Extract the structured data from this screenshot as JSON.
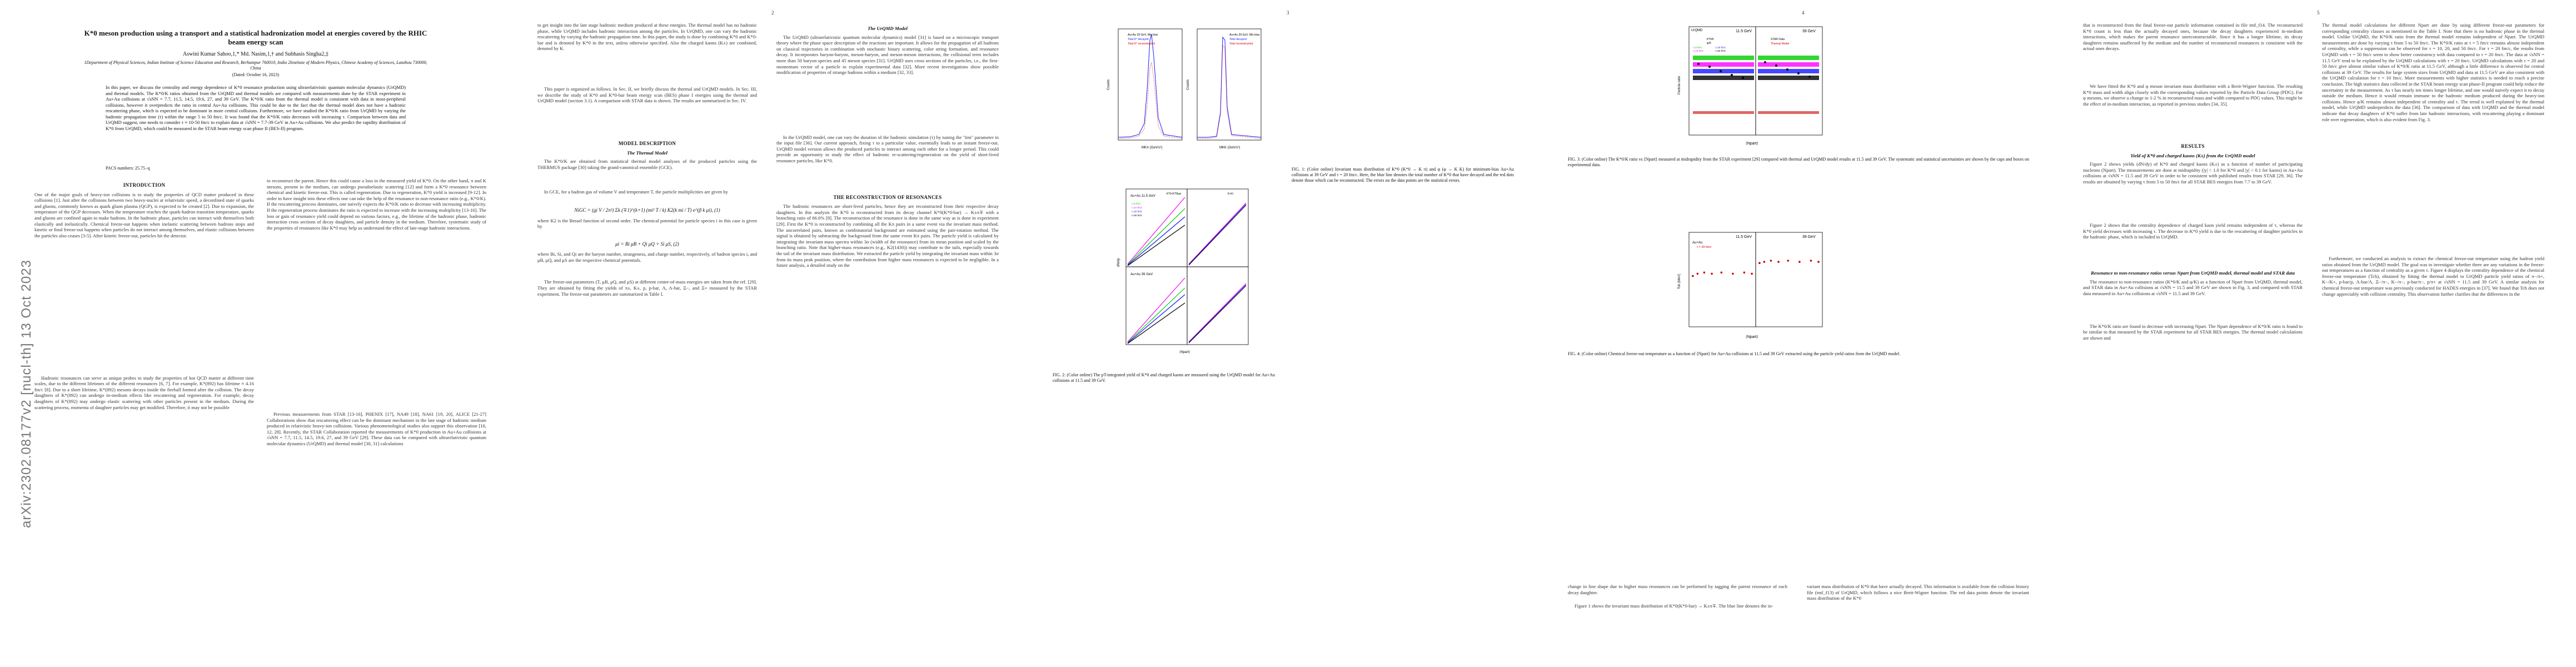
{
  "arxiv_stamp": "arXiv:2302.08177v2  [nucl-th]  13 Oct 2023",
  "page_numbers": [
    "2",
    "3",
    "4",
    "5"
  ],
  "title": "K*0 meson production using a transport and a statistical hadronization model at energies covered by the RHIC beam energy scan",
  "authors": "Aswini Kumar Sahoo,1,* Md. Nasim,1,† and Subhasis Singha2,‡",
  "affiliations": "1Department of Physical Sciences, Indian Institute of Science Education and Research, Berhampur 760010, India  2Institute of Modern Physics, Chinese Academy of Sciences, Lanzhou 730000, China",
  "dated": "(Dated: October 16, 2023)",
  "abstract": "In this paper, we discuss the centrality and energy dependence of K*0 resonance production using ultrarelativistic quantum molecular dynamics (UrQMD) and thermal models. The K*0/K ratios obtained from the UrQMD and thermal models are compared with measurements done by the STAR experiment in Au+Au collisions at √sNN = 7.7, 11.5, 14.5, 19.6, 27, and 39 GeV. The K*0/K ratio from the thermal model is consistent with data in most-peripheral collisions, however it overpredicts the ratio in central Au+Au collisions. This could be due to the fact that the thermal model does not have a hadronic rescattering phase, which is expected to be dominant in more central collisions. Furthermore, we have studied the K*0/K ratio from UrQMD by varying the hadronic propagation time (τ) within the range 5 to 50 fm/c. It was found that the K*0/K ratio decreases with increasing τ. Comparison between data and UrQMD suggest, one needs to consider τ ≈ 10-50 fm/c to explain data at √sNN = 7.7-39 GeV in Au+Au collisions. We also predict the rapidity distribution of K*0 from UrQMD, which could be measured in the STAR beam energy scan phase II (BES-II) program.",
  "pacs": "PACS numbers: 25.75.-q",
  "sections": {
    "introduction": "INTRODUCTION",
    "model_description": "MODEL DESCRIPTION",
    "thermal_model": "The Thermal Model",
    "urqmd_model": "The UrQMD Model",
    "reconstruction": "THE RECONSTRUCTION OF RESONANCES",
    "results": "RESULTS",
    "yield_subsection": "Yield of K*0 and charged kaons (K±) from the UrQMD model",
    "resonance_subsection": "Resonance to non-resonance ratios versus Npart from UrQMD model, thermal model and STAR data"
  },
  "text": {
    "intro_1": "One of the major goals of heavy-ion collisions is to study the properties of QCD matter produced in these collisions [1]. Just after the collisions between two heavy-nuclei at relativistic speed, a deconfined state of quarks and gluons, commonly known as quark gluon plasma (QGP), is expected to be created [2]. Due to expansion, the temperature of the QGP decreases. When the temperature reaches the quark-hadron transition temperature, quarks and gluons are confined again to make hadrons. In the hadronic phase, particles can interact with themselves both elastically and inelastically. Chemical freeze-out happens when inelastic scattering between hadrons stops and kinetic or final freeze-out happens when particles do not interact among themselves, and elastic collisions between the particles also ceases [3-5]. After kinetic freeze-out, particles hit the detector.",
    "intro_2": "Hadronic resonances can serve as unique probes to study the properties of hot QCD matter at different time scales, due to the different lifetimes of the different resonances [6, 7]. For example, K*(892) has lifetime ≈ 4.16 fm/c [8]. Due to a short lifetime, K*(892) mesons decays inside the fireball formed after the collision. The decay daughters of K*(892) can undergo in-medium effects like rescattering and regeneration. For example, decay daughters of K*(892) may undergo elastic scattering with other particles present in the medium. During the scattering process, momenta of daughter particles may get modified. Therefore, it may not be possible",
    "col2_a": "to reconstruct the parent. Hence this could cause a loss in the measured yield of K*0. On the other hand, π and K mesons, present in the medium, can undergo pseudoelastic scattering [12] and form a K*0 resonance between chemical and kinetic freeze-out. This is called regeneration. Due to regeneration, K*0 yield is increased [9-12]. In order to have insight into these effects one can take the help of the resonance to non-resonance ratio (e.g., K*0/K). If the rescattering process dominates, one naively expects the K*0/K ratio to decrease with increasing multiplicity. If the regeneration process dominates the ratio is expected to increase with the increasing multiplicity [13-16]. The loss or gain of resonance yield could depend on various factors, e.g., the lifetime of the hadronic phase, hadronic interaction cross sections of decay daughters, and particle density in the medium. Therefore, systematic study of the properties of resonances like K*0 may help us understand the effect of late-stage hadronic interactions.",
    "col2_b": "Previous measurements from STAR [13-16], PHENIX [17], NA49 [18], NA61 [19, 20], ALICE [21-27] Collaborations show that rescattering effect can be the dominant mechanism in the late stage of hadronic medium produced in relativistic heavy-ion collisions. Various phenomenological studies also support this observation [10, 12, 28]. Recently, the STAR Collaboration reported the measurements of K*0 production in Au+Au collisions at √sNN = 7.7, 11.5, 14.5, 19.6, 27, and 39 GeV [29]. These data can be compared with ultrarelativistic quantum molecular dynamics (UrQMD) and thermal model [30, 31] calculations",
    "col3_a": "to get insight into the late stage hadronic medium produced at these energies. The thermal model has no hadronic phase, while UrQMD includes hadronic interaction among the particles. In UrQMD, one can vary the hadronic rescattering by varying the hadronic propagation time. In this paper, the study is done by combining K*0 and K*0-bar and is denoted by K*0 in the text, unless otherwise specified. Also the charged kaons (K±) are combined, denoted by K.",
    "col3_b": "This paper is organized as follows. In Sec. II, we briefly discuss the thermal and UrQMD models. In Sec. III, we describe the study of K*0 and K*0-bar beam energy scan (BES) phase I energies using the thermal and UrQMD model (section 3.1). A comparison with STAR data is shown. The results are summarized in Sec. IV.",
    "thermal_1": "The K*0/K are obtained from statistical thermal model analyses of the produced particles using the THERMUS package [30] taking the grand-canonical ensemble (GCE).",
    "thermal_2": "In GCE, for a hadron gas of volume V and temperature T, the particle multiplicities are given by",
    "equation_1": "NiGC = (gi V / 2π²) Σk (∓1)^(k+1) (mi² T / k) K2(k mi / T) e^(β k μi),   (1)",
    "thermal_3": "where K2 is the Bessel function of second order. The chemical potential for particle species i in this case is given by",
    "equation_2": "μi = Bi μB + Qi μQ + Si μS,   (2)",
    "thermal_4": "where Bi, Si, and Qi are the baryon number, strangeness, and charge number, respectively, of hadron species i, and μB, μQ, and μS are the respective chemical potentials.",
    "thermal_5": "The freeze-out parameters (T, μB, μQ, and μS) at different center-of-mass energies are taken from the ref. [29]. They are obtained by fitting the yields of π±, K±, p, p-bar, Λ, Λ-bar, Ξ−, and Ξ+ measured by the STAR experiment. The freeze-out parameters are summarized in Table I.",
    "urqmd_1": "The UrQMD (ultrarelativistic quantum molecular dynamics) model [31] is based on a microscopic transport theory where the phase space description of the reactions are important. It allows for the propagation of all hadrons on classical trajectories in combination with stochastic binary scattering, color string formation, and resonance decay. It incorporates baryon-baryon, meson-baryon, and meson-meson interactions, the collisional term includes more than 50 baryon species and 45 meson species [31]. UrQMD uses cross sections of the particles, i.e., the first-momentum vector of a particle to explain experimental data [32]. More recent investigations show possible modification of properties of strange hadrons within a medium [32, 33].",
    "urqmd_2": "In the UrQMD model, one can vary the duration of the hadronic simulation (τ) by tuning the \"tim\" parameter in the input file [36]. Our current approach, fixing τ to a particular value, essentially leads to an instant freeze-out. UrQMD model version allows the produced particles to interact among each other for a longer period. This could provide an opportunity to study the effect of hadronic re-scattering/regeneration on the yield of short-lived resonance particles, like K*0.",
    "recon_1": "The hadronic resonances are short-lived particles, hence they are reconstructed from their respective decay daughters. In this analysis the K*0 is reconstructed from its decay channel K*0(K*0-bar) → K±π∓ with a branching ratio of 66.6% [8]. The reconstruction of the resonance is done in the same way as is done in experiment [29]. First the K*0 is reconstructed by combining all the Kπ pairs in a same event via the invariant mass method. The uncorrelated pairs, known as combinatorial background are estimated using the pair-rotation method. The signal is obtained by subtracting the background from the same event Kπ pairs. The particle yield is calculated by integrating the invariant mass spectra within 3σ (width of the resonance) from its mean position and scaled by the branching ratio. Note that higher-mass resonances (e.g., K2(1430)) may contribute to the tails, especially towards the tail of the invariant mass distribution. We extracted the particle yield by integrating the invariant mass within 3σ from its mass peak position, where the contribution from higher mass resonances is expected to be negligible. In a future analysis, a detailed study on the",
    "col4_bottom_a": "change in line shape due to higher mass resonances can be performed by tagging the parent resonance of each decay daughter.",
    "col4_bottom_b": "Figure 1 shows the invariant mass distribution of K*0(K*0-bar) → K±π∓. The blue line denotes the in-",
    "col4_bottom_c": "variant mass distribution of K*0 that have actually decayed. This information is available from the collision history file (tmf_f13) of UrQMD, which follows a nice Breit-Wigner function. The red data points denote the invariant mass distribution of the K*0",
    "col5_top": "that is reconstructed from the final freeze-out particle information contained in file tmf_f14. The reconstructed K*0 count is less than the actually decayed ones, because the decay daughters experienced in-medium interactions, which makes the parent resonance unreconstructable. Since it has a longer lifetime, its decay daughters remains unaffected by the medium and the number of reconstructed resonances is consistent with the actual ones decays.",
    "col5_top_b": "We have fitted the K*0 and φ meson invariant mass distribution with a Breit-Wigner function. The resulting K*0 mass and width align closely with the corresponding values reported by the Particle Data Group (PDG). For φ mesons, we observe a change to 1-2 % in reconstructed mass and width compared to PDG values. This might be the effect of in-medium interaction, as reported in previous studies [34, 35].",
    "yield_1": "Figure 2 shows yields (dN/dy) of K*0 and charged kaons (K±) as a function of number of participating nucleons (Npart). The measurements are done at midrapidity (|y| < 1.0 for K*0 and |y| < 0.1 for kaons) in Au+Au collisions at √sNN = 11.5 and 39 GeV in order to be consistent with published results from STAR [29, 36]. The results are obtained by varying τ from 5 to 50 fm/c for all STAR BES energies from 7.7 to 39 GeV.",
    "yield_2": "Figure 2 shows that the centrality dependence of charged kaon yield remains independent of τ, whereas the K*0 yield decreases with increasing τ. The decrease in K*0 yield is due to the rescattering of daughter particles in the hadronic phase, which is included in UrQMD.",
    "res_1": "The resonance to non-resonance ratios (K*0/K and φ/K) as a function of Npart from UrQMD, thermal model, and STAR data in Au+Au collisions at √sNN = 11.5 and 39 GeV are shown in Fig. 3, and compared with STAR data measured in Au+Au collisions at √sNN = 11.5 and 39 GeV.",
    "res_2": "The K*0/K ratio are found to decrease with increasing Npart. The Npart dependence of K*0/K ratio is found to be similar to that measured by the STAR experiment for all STAR BES energies. The thermal model calculations are shown and",
    "col6_top": "The thermal model calculations for different Npart are done by using different freeze-out parameters for corresponding centrality classes as mentioned in the Table I. Note that there is no hadronic phase in the thermal model. Unlike UrQMD, the K*0/K ratio from the thermal model remains independent of Npart. The UrQMD measurements are done by varying τ from 5 to 50 fm/c. The K*0/K ratio at τ = 5 fm/c remains almost independent of centrality, while a suppression can be observed for τ = 10, 20, and 50 fm/c. For τ = 20 fm/c, the results from UrQMD with τ = 50 fm/c seem to show better consistency with data compared to τ = 20 fm/c. The data at √sNN = 11.5 GeV tend to be explained by the UrQMD calculations with τ = 20 fm/c. UrQMD calculations with τ = 20 and 50 fm/c give almost similar values of K*0/K ratio at 11.5 GeV, although a little difference is observed for central collisions at 39 GeV. The results for large system sizes from UrQMD and data at 11.5 GeV are also consistent with the UrQMD calculation for τ = 10 fm/c. More measurements with higher statistics is needed to reach a precise conclusion. The high statistics data collected in the STAR beam energy scan phase-II program could help reduce the uncertainty in the measurement. As τ has nearly ten times longer lifetime, and one would naively expect it to decay outside the medium. Hence it would remain immune to the hadronic medium produced during the heavy-ion collisions. Hence φ/K remains almost independent of centrality and τ. The trend is well explained by the thermal model, while UrQMD underpredicts the data [36]. The comparison of data with UrQMD and the thermal model indicate that decay daughters of K*0 suffer from late hadronic interactions, with rescattering playing a dominant role over regeneration, which is also evident from Fig. 3.",
    "col6_bottom": "Furthermore, we conducted an analysis to extract the chemical freeze-out temperature using the hadron yield ratios obtained from the UrQMD model. The goal was to investigate whether there are any variations in the freeze-out temperatures as a function of centrality as a given τ. Figure 4 displays the centrality dependence of the chemical freeze-out temperature (Tch), obtained by fitting the thermal model to UrQMD particle yield ratios of π−/π+, K−/K+, p-bar/p, Λ-bar/Λ, Ξ−/π−, K−/π−, p-bar/π−, p/π+ at √sNN = 11.5 and 39 GeV. A similar analysis for chemical freeze-out temperature was previously conducted for HADES energies in [37]. We found that Tch does not change appreciably with collision centrality. This observation further clarifies that the differences in the"
  },
  "figures": {
    "fig1": {
      "caption": "FIG. 1: (Color online) Invariant mass distribution of K*0 (K*0 → K π) and φ (φ → K K) for minimum-bias Au+Au collisions at 39 GeV and τ = 20 fm/c. Here, the blue line denotes the total number of K*0 that have decayed and the red dots denote those which can be reconstructed. The errors on the data points are the statistical errors.",
      "left_legend": [
        "Au+Au 39 GeV, Min bias",
        "Total K* decayed",
        "Total K* reconstructed"
      ],
      "right_legend": [
        "Au+Au 39 GeV, Min bias",
        "Total decayed",
        "Total reconstructed"
      ],
      "xlabel_left": "MKπ (GeV/c²)",
      "xlabel_right": "MKK (GeV/c²)",
      "ylabel": "Counts"
    },
    "fig2": {
      "caption": "FIG. 2: (Color online) The pT-integrated yield of K*0 and charged kaons are measured using the UrQMD model for Au+Au collisions at 11.5 and 39 GeV.",
      "panel_top_label": "Au+Au 11.5 GeV",
      "panel_bottom_label": "Au+Au 39 GeV",
      "legend": [
        "τ=5 fm/c",
        "τ=10 fm/c",
        "τ=20 fm/c",
        "τ=50 fm/c"
      ],
      "left_title": "K*0+K*0bar",
      "right_title": "K+K-",
      "xlabel": "⟨Npart⟩",
      "ylabel": "dN/dy"
    },
    "fig3": {
      "caption": "FIG. 3: (Color online) The K*0/K ratio vs ⟨Npart⟩ measured at midrapidity from the STAR experiment [29] compared with thermal and UrQMD model results at 11.5 and 39 GeV. The systematic and statistical uncertainties are shown by the caps and boxes on experimental data.",
      "title_left": "11.5 GeV",
      "title_right": "39 GeV",
      "model_label": "UrQMD",
      "legend": [
        "K*0/K",
        "φ/K",
        "τ=5 fm/c",
        "τ=10 fm/c",
        "τ=20 fm/c",
        "τ=50 fm/c",
        "STAR Data",
        "Thermal Model"
      ],
      "ylabel": "Particle ratio",
      "xlabel": "⟨Npart⟩"
    },
    "fig4": {
      "caption": "FIG. 4: (Color online) Chemical freeze-out temperature as a function of ⟨Npart⟩ for Au+Au collisions at 11.5 and 39 GeV extracted using the particle yield ratios from the UrQMD model.",
      "title_left": "11.5 GeV",
      "title_right": "39 GeV",
      "panel_label": "Au+Au",
      "legend": "τ = 20 fm/c",
      "ylabel": "Tch (MeV)",
      "xlabel": "⟨Npart⟩"
    }
  },
  "chart_data": [
    {
      "type": "scatter",
      "title": "",
      "xlabel": "⟨Npart⟩",
      "ylabel": "Tch (MeV)",
      "series": [
        {
          "name": "τ = 20 fm/c",
          "x": [
            20,
            45,
            80,
            120,
            170,
            230,
            290,
            330
          ],
          "y": [
            143,
            145,
            146,
            145,
            146,
            145,
            146,
            145
          ]
        }
      ],
      "ylim": [
        100,
        180
      ],
      "xlim": [
        0,
        350
      ]
    },
    {
      "type": "scatter",
      "title": "",
      "xlabel": "⟨Npart⟩",
      "ylabel": "Tch (MeV)",
      "series": [
        {
          "name": "",
          "x": [
            20,
            45,
            80,
            120,
            170,
            230,
            290,
            330
          ],
          "y": [
            154,
            155,
            156,
            155,
            156,
            155,
            156,
            155
          ]
        }
      ],
      "ylim": [
        100,
        180
      ],
      "xlim": [
        0,
        350
      ]
    }
  ],
  "colors": {
    "tau5": "#00cc00",
    "tau10": "#ff00ff",
    "tau20": "#1a1aff",
    "tau50": "#000000",
    "star": "#000000",
    "thermal": "#cc0000",
    "decayed": "#1a1aff",
    "reconstructed": "#d40000"
  }
}
